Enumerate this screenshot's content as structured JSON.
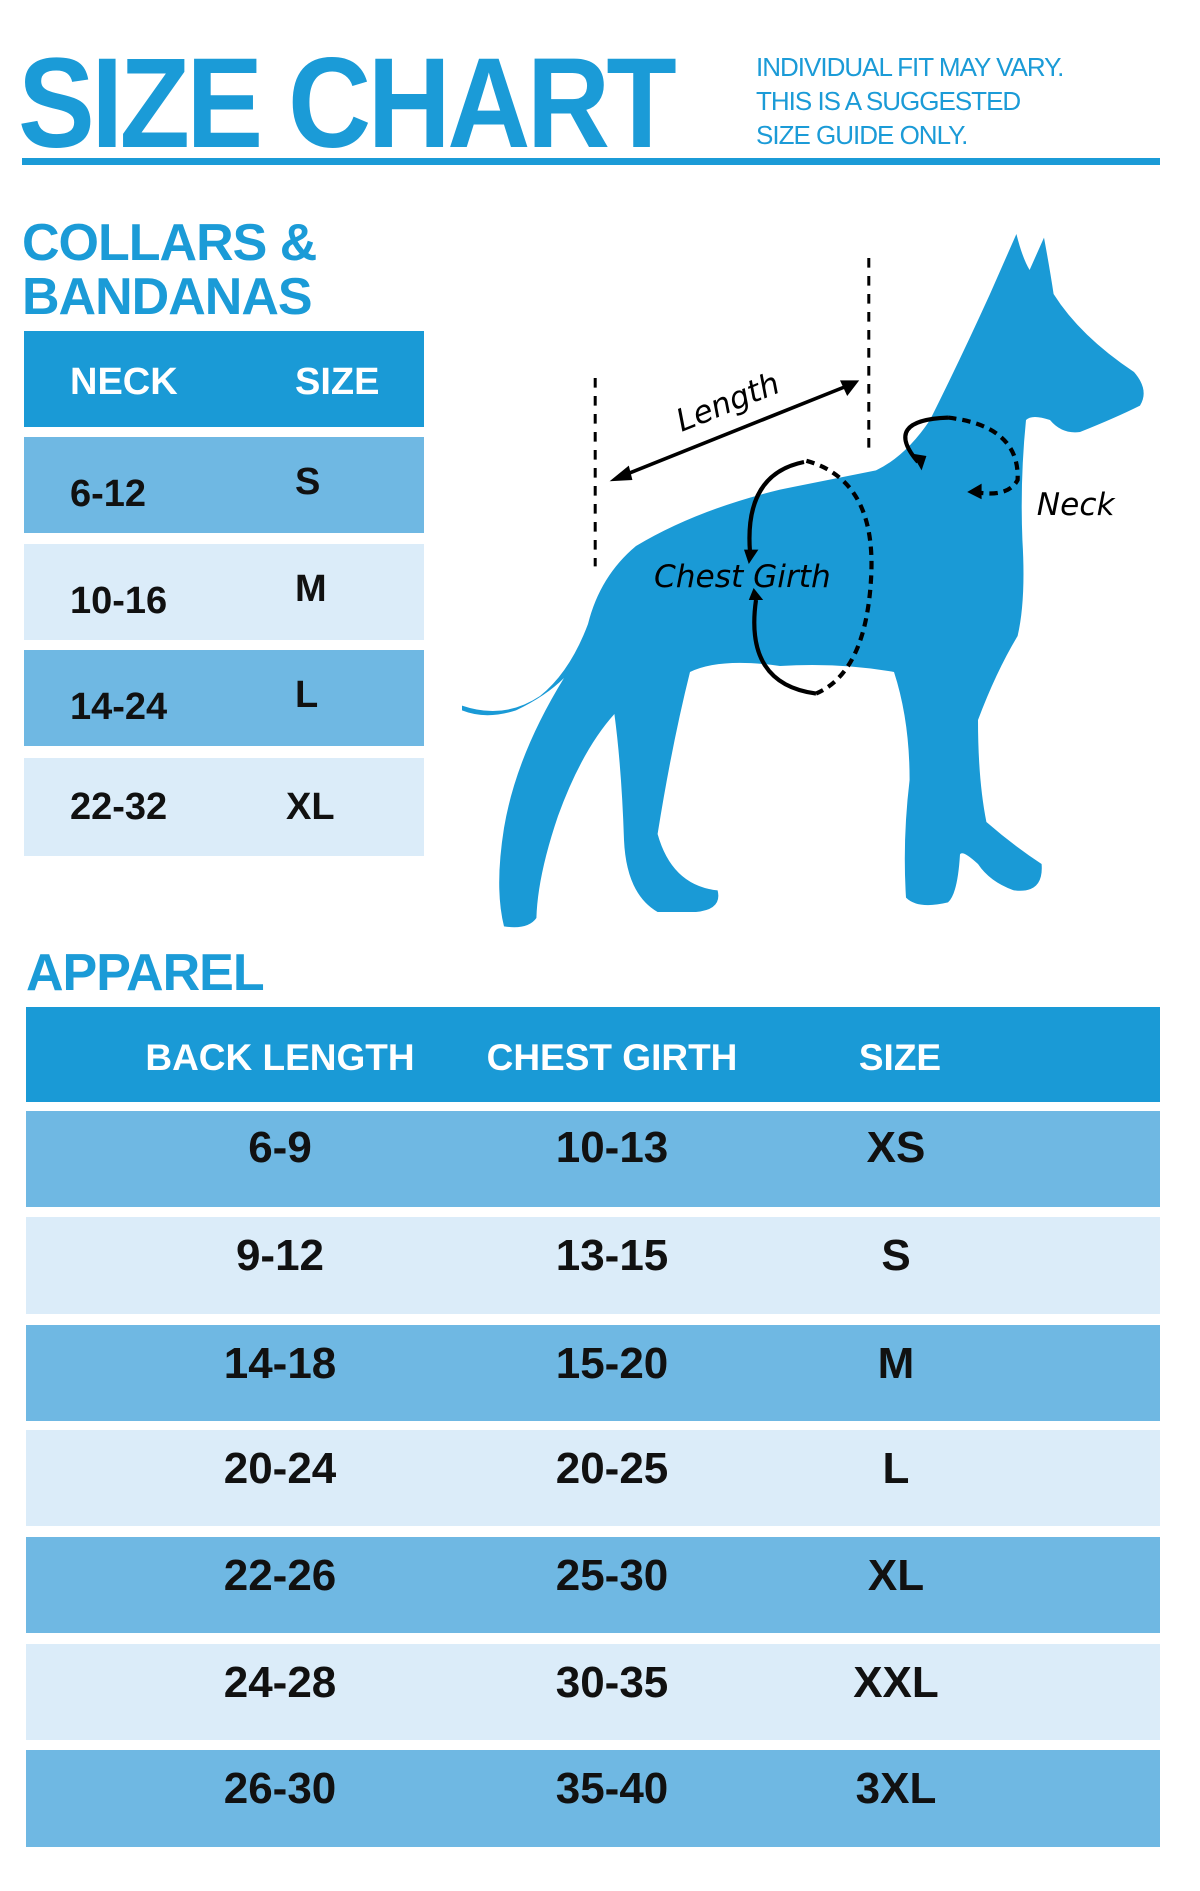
{
  "header": {
    "title": "SIZE CHART",
    "note": [
      "INDIVIDUAL FIT MAY VARY.",
      "THIS IS A SUGGESTED",
      "SIZE GUIDE ONLY."
    ]
  },
  "collars": {
    "title_line1": "COLLARS &",
    "title_line2": "BANDANAS",
    "columns": [
      "NECK",
      "SIZE"
    ],
    "rows": [
      [
        "6-12",
        "S"
      ],
      [
        "10-16",
        "M"
      ],
      [
        "14-24",
        "L"
      ],
      [
        "22-32",
        "XL"
      ]
    ]
  },
  "diagram": {
    "labels": {
      "length": "Length",
      "chest": "Chest Girth",
      "neck": "Neck"
    },
    "color": "#1a9ad6"
  },
  "apparel": {
    "title": "APPAREL",
    "columns": [
      "BACK LENGTH",
      "CHEST GIRTH",
      "SIZE"
    ],
    "rows": [
      [
        "6-9",
        "10-13",
        "XS"
      ],
      [
        "9-12",
        "13-15",
        "S"
      ],
      [
        "14-18",
        "15-20",
        "M"
      ],
      [
        "20-24",
        "20-25",
        "L"
      ],
      [
        "22-26",
        "25-30",
        "XL"
      ],
      [
        "24-28",
        "30-35",
        "XXL"
      ],
      [
        "26-30",
        "35-40",
        "3XL"
      ]
    ]
  },
  "colors": {
    "brand": "#1b9bd7",
    "header_row": "#1a9ad6",
    "row_dark": "#6fb8e3",
    "row_light": "#dbecf9"
  }
}
